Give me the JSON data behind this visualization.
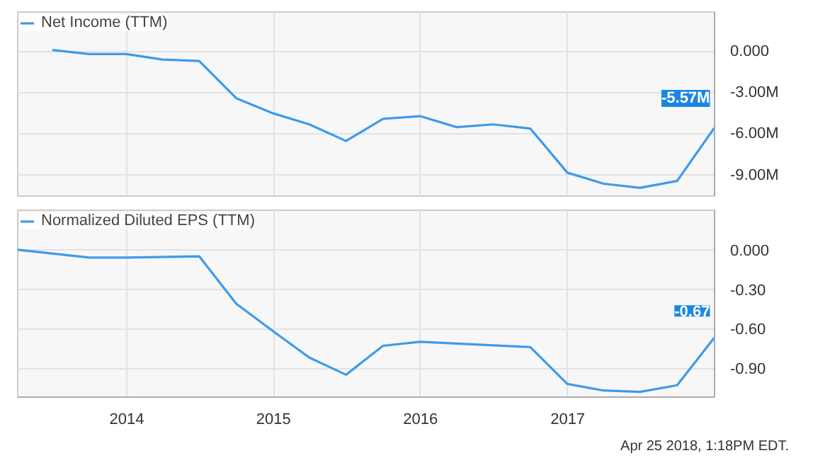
{
  "chart_data": [
    {
      "type": "line",
      "xlim": [
        "2013-04-05",
        "2018-01-01"
      ],
      "ylim": [
        -10500000,
        2850000
      ],
      "xticks": [
        {
          "value": "2014-01-01",
          "label": null
        },
        {
          "value": "2015-01-01",
          "label": null
        },
        {
          "value": "2016-01-01",
          "label": null
        },
        {
          "value": "2017-01-01",
          "label": null
        }
      ],
      "yticks": [
        {
          "value": 0,
          "label": "0.000"
        },
        {
          "value": -3000000,
          "label": "-3.00M"
        },
        {
          "value": -6000000,
          "label": "-6.00M"
        },
        {
          "value": -9000000,
          "label": "-9.00M"
        }
      ],
      "tick_labels": "y",
      "grid": true,
      "legend": "top left",
      "marker": "none",
      "x": [
        "2013-06-30",
        "2013-09-30",
        "2013-12-31",
        "2014-03-31",
        "2014-06-30",
        "2014-09-30",
        "2014-12-31",
        "2015-03-31",
        "2015-06-30",
        "2015-09-30",
        "2015-12-31",
        "2016-03-31",
        "2016-06-30",
        "2016-09-30",
        "2016-12-31",
        "2017-03-31",
        "2017-06-30",
        "2017-09-30",
        "2017-12-31"
      ],
      "series": [
        {
          "name": "Net Income (TTM)",
          "color": "#3d9be9",
          "values": [
            100000,
            -200000,
            -200000,
            -600000,
            -700000,
            -3400000,
            -4500000,
            -5300000,
            -6500000,
            -4900000,
            -4700000,
            -5500000,
            -5300000,
            -5600000,
            -8800000,
            -9600000,
            -9900000,
            -9400000,
            -5570000
          ],
          "value_labels": [
            null,
            null,
            null,
            null,
            null,
            null,
            null,
            null,
            null,
            null,
            null,
            null,
            null,
            null,
            null,
            null,
            null,
            null,
            "-5.57M"
          ]
        }
      ]
    },
    {
      "type": "line",
      "xlim": [
        "2013-04-05",
        "2018-01-01"
      ],
      "ylim": [
        -1.12,
        0.3
      ],
      "xticks": [
        {
          "value": "2014-01-01",
          "label": "2014"
        },
        {
          "value": "2015-01-01",
          "label": "2015"
        },
        {
          "value": "2016-01-01",
          "label": "2016"
        },
        {
          "value": "2017-01-01",
          "label": "2017"
        }
      ],
      "yticks": [
        {
          "value": 0,
          "label": "0.000"
        },
        {
          "value": -0.3,
          "label": "-0.30"
        },
        {
          "value": -0.6,
          "label": "-0.60"
        },
        {
          "value": -0.9,
          "label": "-0.90"
        }
      ],
      "grid": true,
      "legend": "top left",
      "marker": "none",
      "x": [
        "2013-04-05",
        "2013-09-30",
        "2013-12-31",
        "2014-06-30",
        "2014-09-30",
        "2014-12-31",
        "2015-03-31",
        "2015-06-30",
        "2015-09-30",
        "2015-12-31",
        "2016-09-30",
        "2016-12-31",
        "2017-03-31",
        "2017-06-30",
        "2017-09-30",
        "2017-12-31"
      ],
      "series": [
        {
          "name": "Normalized Diluted EPS (TTM)",
          "color": "#3d9be9",
          "values": [
            0.0,
            -0.06,
            -0.06,
            -0.05,
            -0.41,
            -0.62,
            -0.82,
            -0.95,
            -0.73,
            -0.7,
            -0.74,
            -1.02,
            -1.07,
            -1.08,
            -1.03,
            -0.67
          ],
          "value_labels": [
            null,
            null,
            null,
            null,
            null,
            null,
            null,
            null,
            null,
            null,
            null,
            null,
            null,
            null,
            null,
            "-0.67"
          ]
        }
      ],
      "annotations": [
        "Apr 25 2018, 1:18PM EDT."
      ]
    }
  ]
}
